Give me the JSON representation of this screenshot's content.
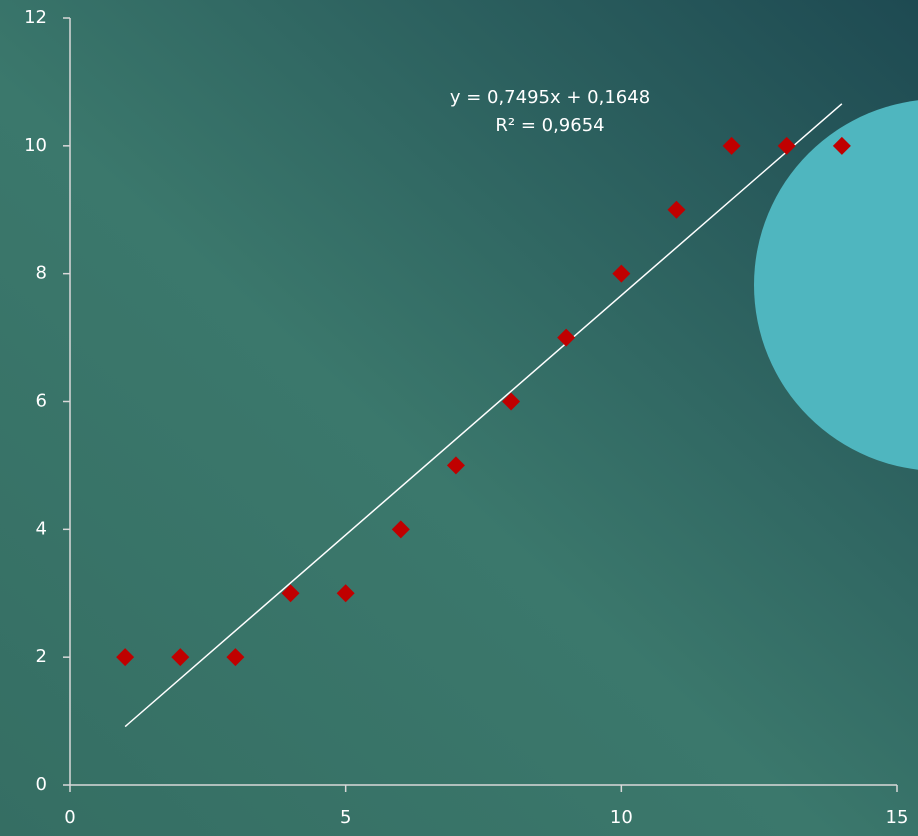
{
  "chart_data": {
    "type": "scatter",
    "x": [
      1,
      2,
      3,
      4,
      5,
      6,
      7,
      8,
      9,
      10,
      11,
      12,
      13,
      14
    ],
    "series": [
      {
        "color": "#c00000",
        "values": [
          2,
          2,
          2,
          3,
          3,
          4,
          5,
          6,
          7,
          8,
          9,
          10,
          10,
          10
        ]
      }
    ],
    "xlim": [
      0,
      15
    ],
    "xticks": [
      0,
      5,
      10,
      15
    ],
    "ylim": [
      0,
      12
    ],
    "yticks": [
      0,
      2,
      4,
      6,
      8,
      10,
      12
    ],
    "grid": false,
    "trendline": {
      "equation": "y = 0,7495x + 0,1648",
      "r_squared": "R² = 0,9654",
      "slope": 0.7495,
      "intercept": 0.1648,
      "color": "#ffffff"
    }
  }
}
